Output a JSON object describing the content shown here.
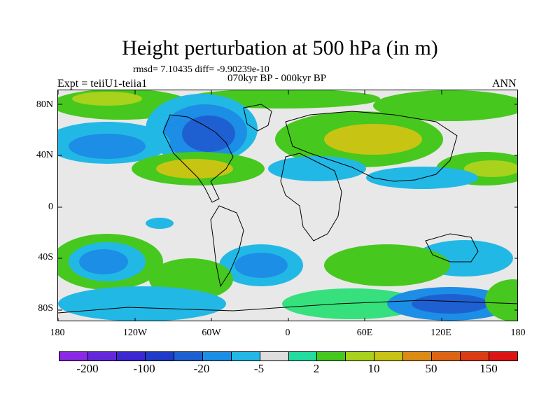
{
  "title": "Height perturbation at 500 hPa (in m)",
  "stats": "rmsd= 7.10435 diff= -9.90239e-10",
  "period": "070kyr BP - 000kyr BP",
  "expt": "Expt = teiiU1-teiia1",
  "season": "ANN",
  "map": {
    "y_ticks": [
      "80N",
      "40N",
      "0",
      "40S",
      "80S"
    ],
    "x_ticks": [
      "180",
      "120W",
      "60W",
      "0",
      "60E",
      "120E",
      "180"
    ],
    "field_colors": {
      "background": "#e8e8e8",
      "green_light": "#36e07c",
      "green": "#46c81e",
      "yellow_green": "#a8d21c",
      "olive": "#c8c414",
      "cyan": "#22b8e6",
      "light_blue": "#1c8ee6",
      "blue": "#1e60d2",
      "dark_blue": "#1234c8"
    }
  },
  "colorbar": {
    "colors": [
      "#8a2ae6",
      "#6428dc",
      "#3c28d2",
      "#1e3cc8",
      "#1e60d2",
      "#1c8ee6",
      "#22b8e6",
      "#dedede",
      "#22dca0",
      "#46c81e",
      "#a8d21c",
      "#c8c414",
      "#dc8c14",
      "#dc6414",
      "#dc3c14",
      "#dc1414"
    ],
    "labels": [
      "-200",
      "-100",
      "-20",
      "-5",
      "2",
      "10",
      "50",
      "150"
    ]
  }
}
